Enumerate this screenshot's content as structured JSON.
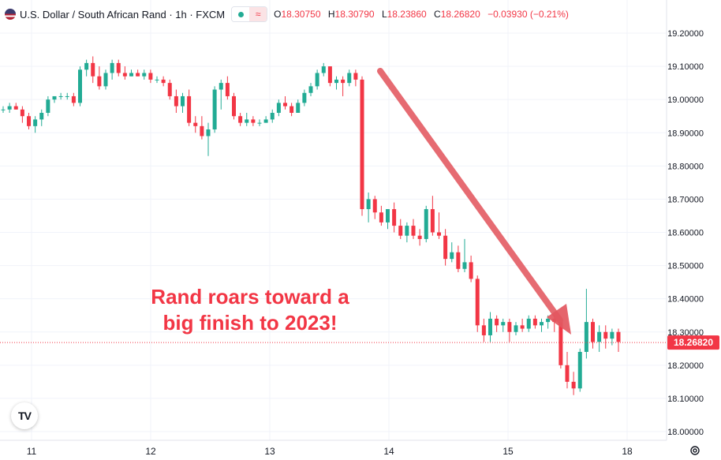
{
  "header": {
    "symbol": "U.S. Dollar / South African Rand · 1h · FXCM",
    "open_label": "O",
    "open": "18.30750",
    "high_label": "H",
    "high": "18.30790",
    "low_label": "L",
    "low": "18.23860",
    "close_label": "C",
    "close": "18.26820",
    "change": "−0.03930 (−0.21%)"
  },
  "annotation": {
    "line1": "Rand roars toward a",
    "line2": "big finish to 2023!"
  },
  "colors": {
    "up": "#22ab94",
    "down": "#f23645",
    "annotation": "#f23645",
    "arrow": "#e3575f",
    "price_tag": "#f23645"
  },
  "chart_data": {
    "type": "candlestick",
    "y_axis": {
      "min": 18.0,
      "max": 19.2,
      "ticks": [
        "18.00000",
        "18.10000",
        "18.20000",
        "18.30000",
        "18.40000",
        "18.50000",
        "18.60000",
        "18.70000",
        "18.80000",
        "18.90000",
        "19.00000",
        "19.10000",
        "19.20000"
      ]
    },
    "x_axis": {
      "labels": [
        "11",
        "12",
        "13",
        "14",
        "15",
        "18"
      ]
    },
    "current_price": "18.26820",
    "candles": [
      [
        18.97,
        18.98,
        18.96,
        18.97
      ],
      [
        18.97,
        18.99,
        18.96,
        18.98
      ],
      [
        18.98,
        18.99,
        18.97,
        18.97
      ],
      [
        18.97,
        18.98,
        18.93,
        18.95
      ],
      [
        18.95,
        18.96,
        18.91,
        18.92
      ],
      [
        18.92,
        18.95,
        18.9,
        18.94
      ],
      [
        18.94,
        18.97,
        18.92,
        18.96
      ],
      [
        18.96,
        19.01,
        18.95,
        19.0
      ],
      [
        19.0,
        19.01,
        18.99,
        19.01
      ],
      [
        19.01,
        19.02,
        19.0,
        19.01
      ],
      [
        19.01,
        19.02,
        19.0,
        19.01
      ],
      [
        19.01,
        19.02,
        18.98,
        18.99
      ],
      [
        18.99,
        19.1,
        18.98,
        19.09
      ],
      [
        19.09,
        19.12,
        19.07,
        19.11
      ],
      [
        19.11,
        19.13,
        19.05,
        19.07
      ],
      [
        19.07,
        19.1,
        19.03,
        19.04
      ],
      [
        19.04,
        19.09,
        19.03,
        19.08
      ],
      [
        19.08,
        19.12,
        19.06,
        19.11
      ],
      [
        19.11,
        19.12,
        19.07,
        19.08
      ],
      [
        19.08,
        19.1,
        19.06,
        19.07
      ],
      [
        19.07,
        19.09,
        19.07,
        19.08
      ],
      [
        19.08,
        19.09,
        19.07,
        19.07
      ],
      [
        19.07,
        19.09,
        19.06,
        19.08
      ],
      [
        19.08,
        19.09,
        19.05,
        19.06
      ],
      [
        19.06,
        19.07,
        19.05,
        19.06
      ],
      [
        19.06,
        19.07,
        19.04,
        19.05
      ],
      [
        19.05,
        19.06,
        19.0,
        19.01
      ],
      [
        19.01,
        19.03,
        18.96,
        18.98
      ],
      [
        18.98,
        19.02,
        18.96,
        19.01
      ],
      [
        19.01,
        19.03,
        18.92,
        18.93
      ],
      [
        18.93,
        18.95,
        18.9,
        18.92
      ],
      [
        18.92,
        18.95,
        18.88,
        18.89
      ],
      [
        18.89,
        18.93,
        18.83,
        18.91
      ],
      [
        18.91,
        19.04,
        18.9,
        19.03
      ],
      [
        19.03,
        19.06,
        18.97,
        19.05
      ],
      [
        19.05,
        19.07,
        19.0,
        19.01
      ],
      [
        19.01,
        19.02,
        18.94,
        18.95
      ],
      [
        18.95,
        18.96,
        18.92,
        18.93
      ],
      [
        18.93,
        18.96,
        18.92,
        18.94
      ],
      [
        18.94,
        18.95,
        18.92,
        18.93
      ],
      [
        18.93,
        18.94,
        18.92,
        18.93
      ],
      [
        18.93,
        18.95,
        18.93,
        18.94
      ],
      [
        18.94,
        18.97,
        18.93,
        18.96
      ],
      [
        18.96,
        19.0,
        18.95,
        18.99
      ],
      [
        18.99,
        19.01,
        18.97,
        18.98
      ],
      [
        18.98,
        18.99,
        18.95,
        18.96
      ],
      [
        18.96,
        19.0,
        18.96,
        18.99
      ],
      [
        18.99,
        19.03,
        18.98,
        19.02
      ],
      [
        19.02,
        19.05,
        19.01,
        19.04
      ],
      [
        19.04,
        19.09,
        19.03,
        19.08
      ],
      [
        19.08,
        19.11,
        19.07,
        19.1
      ],
      [
        19.1,
        19.1,
        19.04,
        19.05
      ],
      [
        19.05,
        19.07,
        19.03,
        19.06
      ],
      [
        19.06,
        19.07,
        19.01,
        19.05
      ],
      [
        19.05,
        19.09,
        19.04,
        19.08
      ],
      [
        19.08,
        19.09,
        19.04,
        19.06
      ],
      [
        19.06,
        19.07,
        18.65,
        18.67
      ],
      [
        18.67,
        18.72,
        18.63,
        18.7
      ],
      [
        18.7,
        18.71,
        18.64,
        18.66
      ],
      [
        18.66,
        18.68,
        18.62,
        18.63
      ],
      [
        18.63,
        18.67,
        18.61,
        18.67
      ],
      [
        18.67,
        18.69,
        18.6,
        18.62
      ],
      [
        18.62,
        18.64,
        18.58,
        18.59
      ],
      [
        18.59,
        18.63,
        18.57,
        18.62
      ],
      [
        18.62,
        18.64,
        18.58,
        18.59
      ],
      [
        18.59,
        18.61,
        18.56,
        18.58
      ],
      [
        18.58,
        18.68,
        18.57,
        18.67
      ],
      [
        18.67,
        18.71,
        18.59,
        18.6
      ],
      [
        18.6,
        18.66,
        18.58,
        18.59
      ],
      [
        18.59,
        18.61,
        18.5,
        18.52
      ],
      [
        18.52,
        18.57,
        18.51,
        18.54
      ],
      [
        18.54,
        18.56,
        18.48,
        18.49
      ],
      [
        18.49,
        18.58,
        18.48,
        18.51
      ],
      [
        18.51,
        18.53,
        18.45,
        18.46
      ],
      [
        18.46,
        18.47,
        18.3,
        18.32
      ],
      [
        18.32,
        18.34,
        18.27,
        18.29
      ],
      [
        18.29,
        18.36,
        18.27,
        18.34
      ],
      [
        18.34,
        18.35,
        18.3,
        18.32
      ],
      [
        18.32,
        18.34,
        18.3,
        18.33
      ],
      [
        18.33,
        18.34,
        18.27,
        18.3
      ],
      [
        18.3,
        18.33,
        18.29,
        18.32
      ],
      [
        18.32,
        18.34,
        18.3,
        18.31
      ],
      [
        18.31,
        18.35,
        18.3,
        18.34
      ],
      [
        18.34,
        18.35,
        18.31,
        18.32
      ],
      [
        18.32,
        18.34,
        18.3,
        18.33
      ],
      [
        18.33,
        18.35,
        18.31,
        18.34
      ],
      [
        18.34,
        18.35,
        18.3,
        18.33
      ],
      [
        18.33,
        18.34,
        18.19,
        18.2
      ],
      [
        18.2,
        18.24,
        18.13,
        18.15
      ],
      [
        18.15,
        18.18,
        18.11,
        18.13
      ],
      [
        18.13,
        18.25,
        18.12,
        18.24
      ],
      [
        18.24,
        18.43,
        18.22,
        18.33
      ],
      [
        18.33,
        18.34,
        18.25,
        18.27
      ],
      [
        18.27,
        18.32,
        18.24,
        18.3
      ],
      [
        18.3,
        18.32,
        18.25,
        18.28
      ],
      [
        18.28,
        18.31,
        18.26,
        18.3
      ],
      [
        18.3,
        18.31,
        18.24,
        18.27
      ]
    ]
  }
}
